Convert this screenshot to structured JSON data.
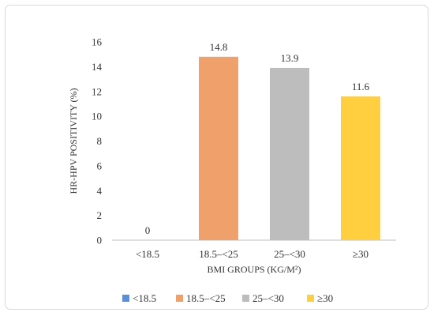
{
  "chart_data": {
    "type": "bar",
    "categories": [
      "<18.5",
      "18.5–<25",
      "25–<30",
      "≥30"
    ],
    "values": [
      0,
      14.8,
      13.9,
      11.6
    ],
    "data_labels": [
      "0",
      "14.8",
      "13.9",
      "11.6"
    ],
    "colors": [
      "#5b8fd6",
      "#f0a06a",
      "#bdbdbd",
      "#ffcf3f"
    ],
    "xlabel": "BMI GROUPS (KG/M²)",
    "ylabel": "HR-HPV POSITIVITY (%)",
    "ylim": [
      0,
      16
    ],
    "yticks": [
      "0",
      "2",
      "4",
      "6",
      "8",
      "10",
      "12",
      "14",
      "16"
    ],
    "grid": false,
    "legend": {
      "position": "bottom",
      "entries": [
        "<18.5",
        "18.5–<25",
        "25–<30",
        "≥30"
      ]
    }
  }
}
